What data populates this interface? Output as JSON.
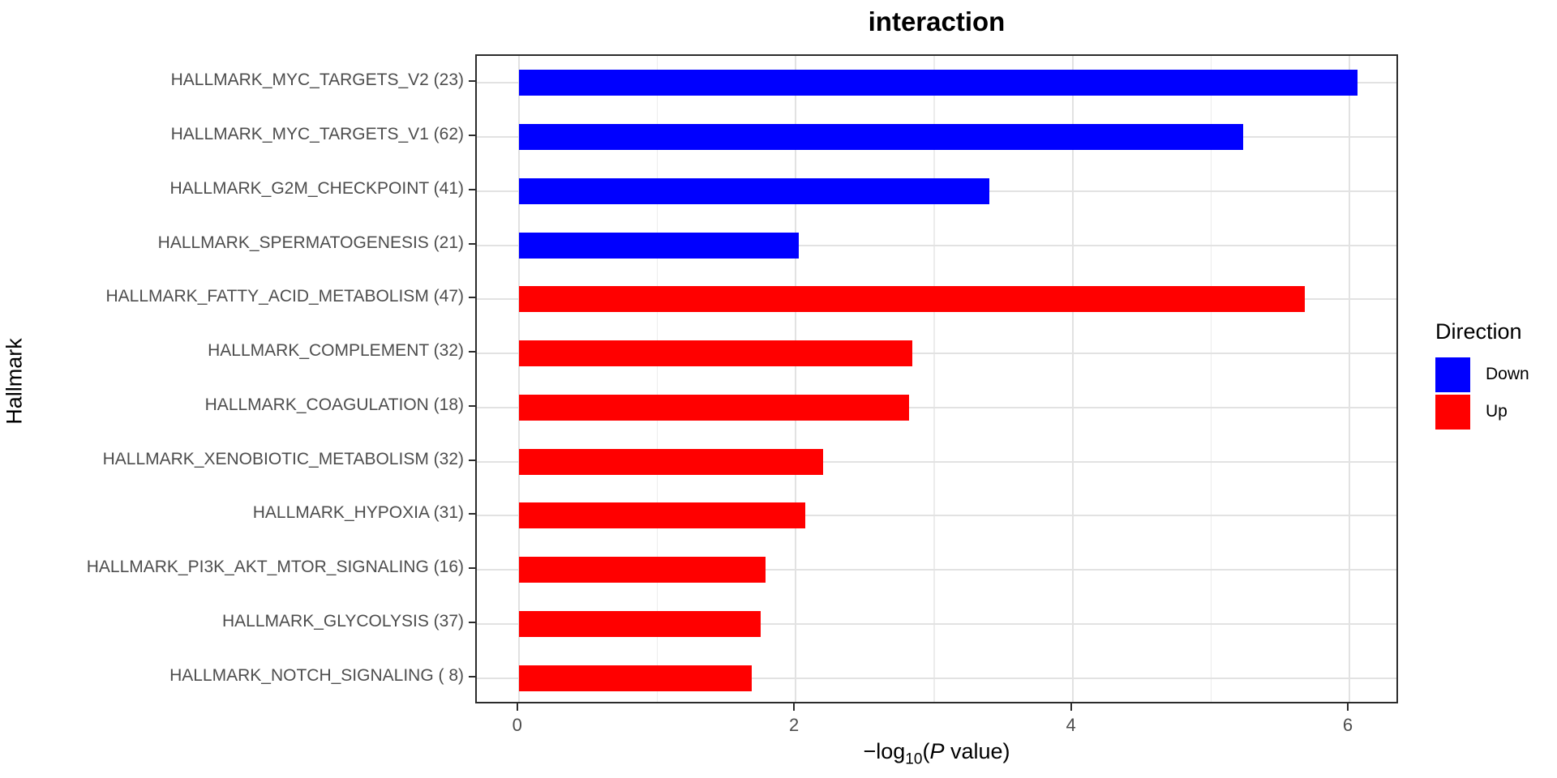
{
  "chart_data": {
    "type": "bar",
    "orientation": "horizontal",
    "title": "interaction",
    "xlabel": "-log10(P value)",
    "xlabel_parts": {
      "pre": "−log",
      "sub": "10",
      "mid": "(",
      "italic": "P",
      "post": " value)"
    },
    "ylabel": "Hallmark",
    "xticks": [
      0,
      2,
      4,
      6
    ],
    "x_minor_ticks": [
      1,
      3,
      5
    ],
    "xlim_expand_mult": 0.05,
    "grid": true,
    "categories": [
      "HALLMARK_MYC_TARGETS_V2 (23)",
      "HALLMARK_MYC_TARGETS_V1 (62)",
      "HALLMARK_G2M_CHECKPOINT (41)",
      "HALLMARK_SPERMATOGENESIS (21)",
      "HALLMARK_FATTY_ACID_METABOLISM (47)",
      "HALLMARK_COMPLEMENT (32)",
      "HALLMARK_COAGULATION (18)",
      "HALLMARK_XENOBIOTIC_METABOLISM (32)",
      "HALLMARK_HYPOXIA (31)",
      "HALLMARK_PI3K_AKT_MTOR_SIGNALING (16)",
      "HALLMARK_GLYCOLYSIS (37)",
      "HALLMARK_NOTCH_SIGNALING ( 8)"
    ],
    "values": [
      6.06,
      5.23,
      3.4,
      2.02,
      5.68,
      2.84,
      2.82,
      2.2,
      2.07,
      1.78,
      1.75,
      1.68
    ],
    "directions": [
      "Down",
      "Down",
      "Down",
      "Down",
      "Up",
      "Up",
      "Up",
      "Up",
      "Up",
      "Up",
      "Up",
      "Up"
    ],
    "colors": {
      "Down": "#0000ff",
      "Up": "#ff0000"
    },
    "legend": {
      "title": "Direction",
      "position": "right",
      "entries": [
        {
          "label": "Down",
          "color": "#0000ff"
        },
        {
          "label": "Up",
          "color": "#ff0000"
        }
      ]
    }
  }
}
